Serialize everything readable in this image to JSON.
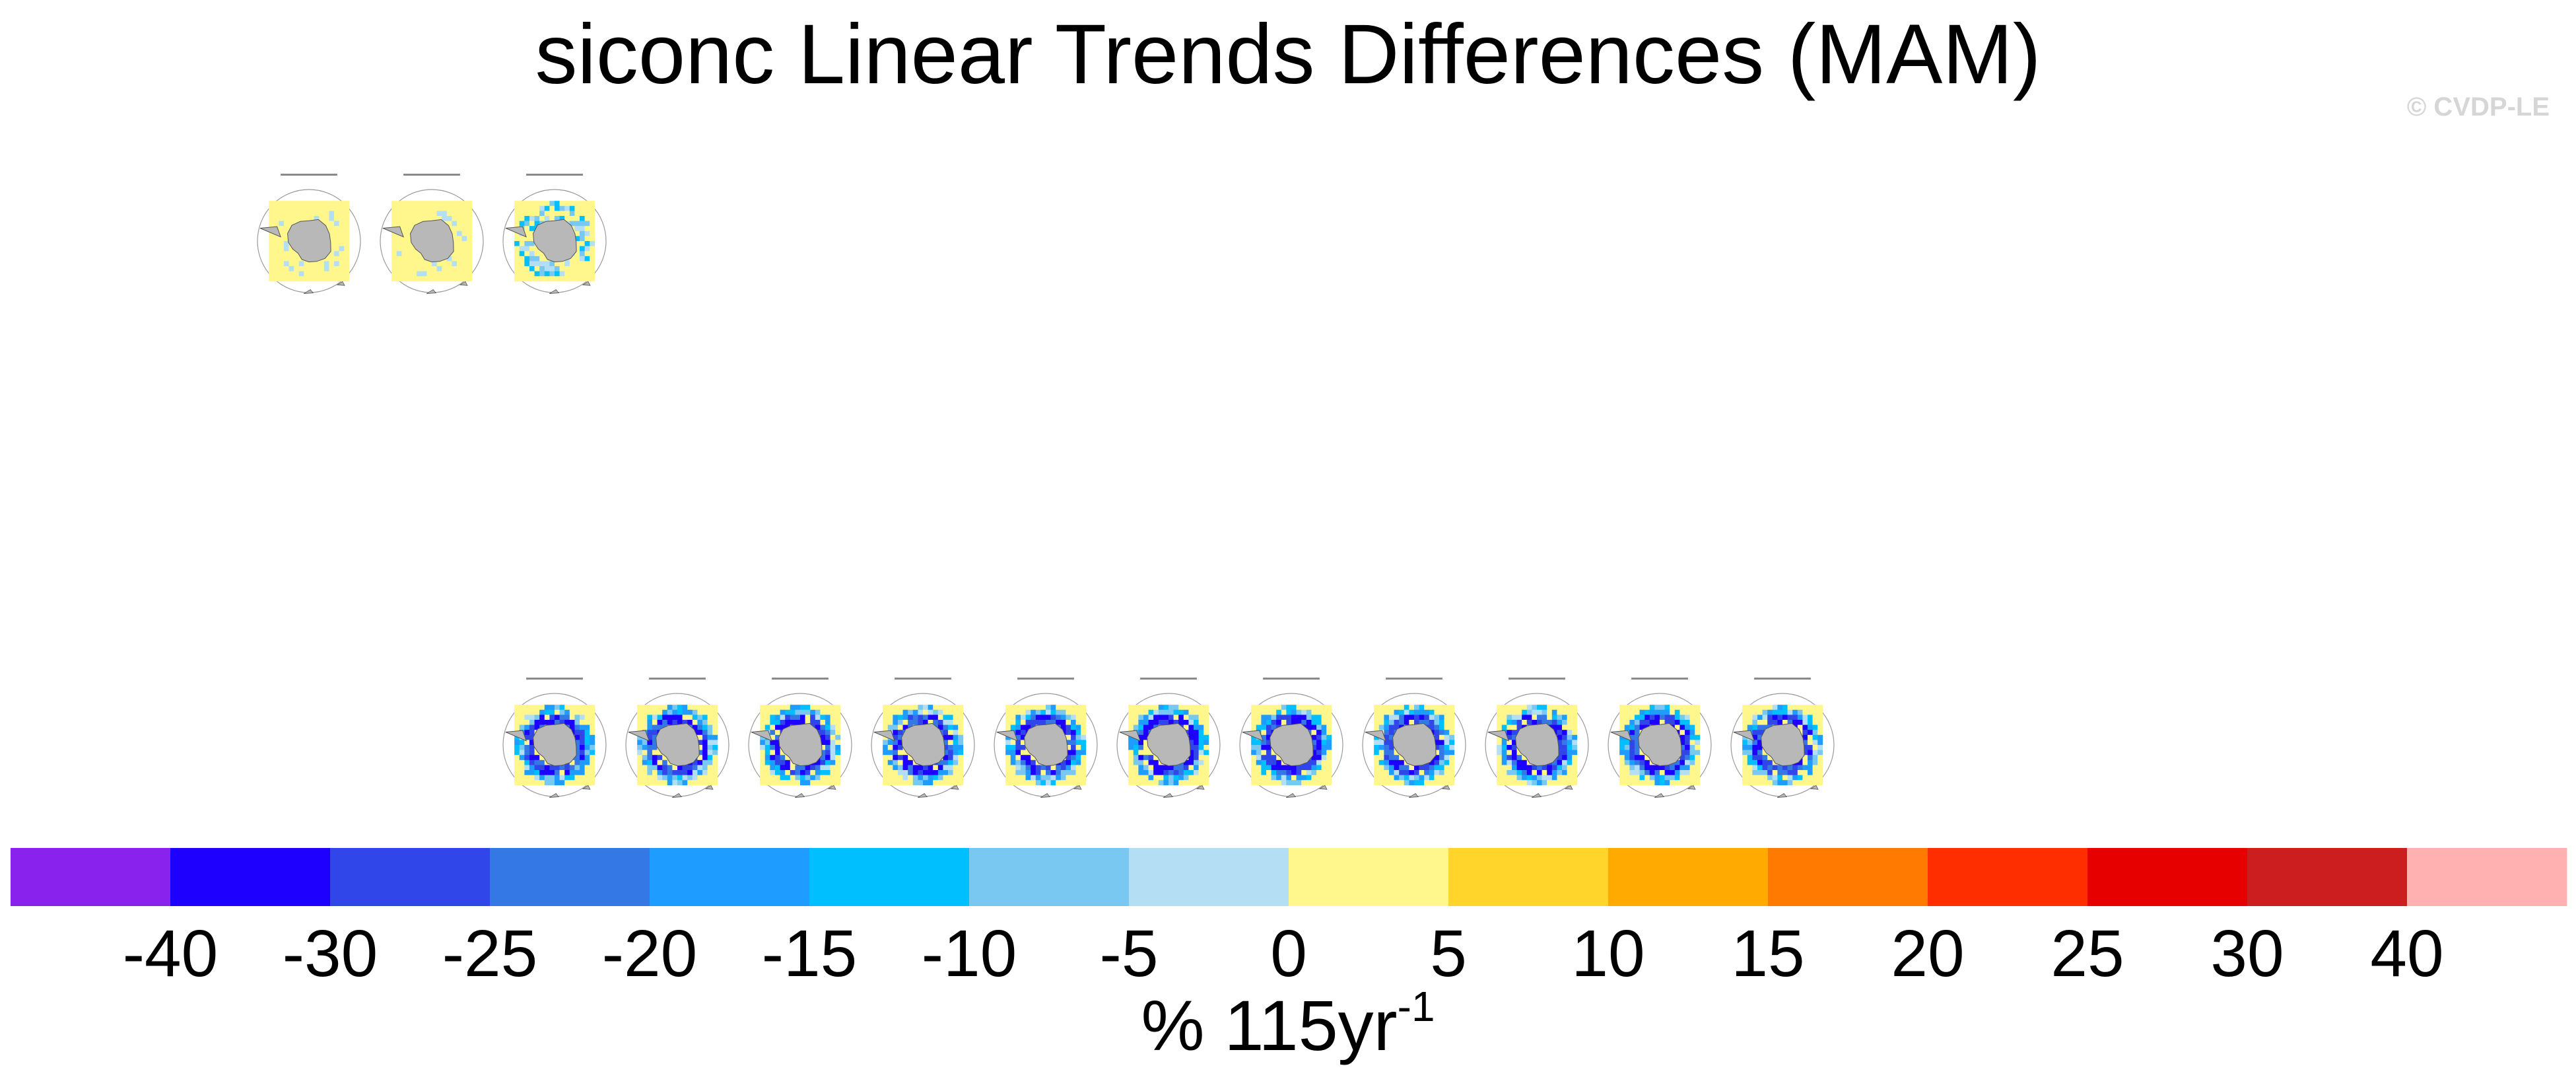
{
  "title": "siconc Linear Trends Differences (MAM)",
  "watermark": "© CVDP-LE",
  "chart_data": {
    "type": "heatmap",
    "title": "siconc Linear Trends Differences (MAM)",
    "variable": "siconc",
    "season": "MAM",
    "projection": "south-polar-stereographic",
    "region": "Antarctica",
    "panels": {
      "row1_count": 3,
      "row2_count": 11,
      "row1_pattern": [
        "mostly-positive",
        "mostly-positive",
        "mixed-negative"
      ],
      "row2_pattern": "negative-ring"
    },
    "colorbar": {
      "labels": [
        "-40",
        "-30",
        "-25",
        "-20",
        "-15",
        "-10",
        "-5",
        "0",
        "5",
        "10",
        "15",
        "20",
        "25",
        "30",
        "40"
      ],
      "units_base": "% 115yr",
      "units_exp": "-1",
      "colors": [
        "#8A22EE",
        "#1D00FF",
        "#3146E8",
        "#3478E6",
        "#1E9CFF",
        "#00BFFF",
        "#78C8F2",
        "#B4DEF4",
        "#FFF68C",
        "#FFD52B",
        "#FFAA00",
        "#FF7A00",
        "#FF2E00",
        "#E60000",
        "#CC1E1E",
        "#FFB0B0"
      ]
    }
  }
}
